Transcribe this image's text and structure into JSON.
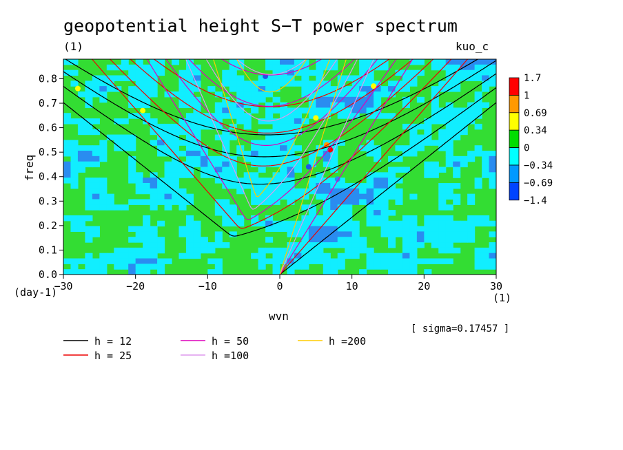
{
  "chart_data": {
    "type": "heatmap",
    "title": "geopotential height S−T power spectrum",
    "subtitle": "(1)",
    "source_label": "kuo_c",
    "xlabel": "wvn",
    "ylabel": "freq",
    "x_unit": "(1)",
    "y_unit": "(day-1)",
    "xlim": [
      -30,
      30
    ],
    "ylim": [
      0,
      0.88
    ],
    "xticks": [
      -30,
      -20,
      -10,
      0,
      10,
      20,
      30
    ],
    "xtick_labels": [
      "−30",
      "−20",
      "−10",
      "0",
      "10",
      "20",
      "30"
    ],
    "yticks": [
      0.0,
      0.1,
      0.2,
      0.3,
      0.4,
      0.5,
      0.6,
      0.7,
      0.8
    ],
    "ytick_labels": [
      "0.0",
      "0.1",
      "0.2",
      "0.3",
      "0.4",
      "0.5",
      "0.6",
      "0.7",
      "0.8"
    ],
    "sigma_text": "[ sigma=0.17457 ]",
    "colorbar": {
      "labels": [
        "1.7",
        "1",
        "0.69",
        "0.34",
        "0",
        "−0.34",
        "−0.69",
        "−1.4"
      ],
      "colors": [
        "#ff0000",
        "#ff9900",
        "#ffff00",
        "#00dd00",
        "#00ffff",
        "#0099ff",
        "#0044ff"
      ]
    },
    "field_colors": {
      "green": "#33dd33",
      "cyan": "#11eeff",
      "blue": "#2a8cf0",
      "deep_blue": "#1f55e8",
      "yellow": "#ffff00",
      "orange": "#ff9900",
      "red": "#ff0000"
    },
    "series": [
      {
        "name": "h = 12",
        "h": 12,
        "color": "#000000"
      },
      {
        "name": "h = 25",
        "h": 25,
        "color": "#ee0000"
      },
      {
        "name": "h = 50",
        "h": 50,
        "color": "#dd00bb"
      },
      {
        "name": "h =100",
        "h": 100,
        "color": "#dd99ee"
      },
      {
        "name": "h =200",
        "h": 200,
        "color": "#ffcc00"
      }
    ]
  }
}
